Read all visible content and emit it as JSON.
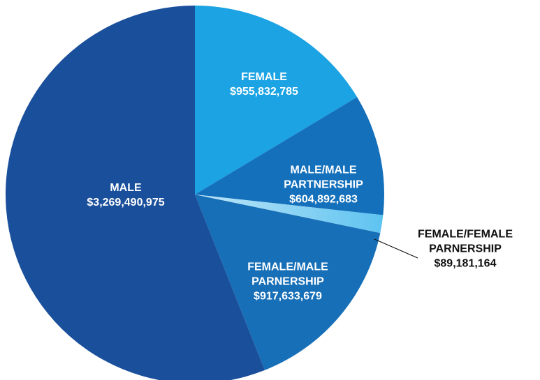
{
  "chart_data": {
    "type": "pie",
    "categories": [
      "FEMALE",
      "MALE/MALE PARTNERSHIP",
      "FEMALE/FEMALE PARNERSHIP",
      "FEMALE/MALE PARNERSHIP",
      "MALE"
    ],
    "values": [
      955832785,
      604892683,
      89181164,
      917633679,
      3269490975
    ],
    "value_labels": [
      "$955,832,785",
      "$604,892,683",
      "$89,181,164",
      "$917,633,679",
      "$3,269,490,975"
    ],
    "colors": [
      "#1ba3e3",
      "#1470bb",
      "#5ec3f0",
      "#176fb7",
      "#1a4f9b"
    ]
  }
}
